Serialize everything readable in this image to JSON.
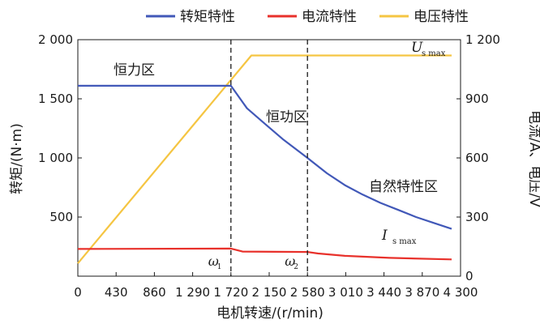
{
  "chart_data": {
    "type": "line",
    "xlabel": "电机转速/(r/min)",
    "ylabel_left": "转矩/(N·m)",
    "ylabel_right": "电流/A、电压/V",
    "xlim": [
      0,
      4300
    ],
    "ylim_left": [
      0,
      2000
    ],
    "ylim_right": [
      0,
      1200
    ],
    "x_ticks": [
      0,
      430,
      860,
      1290,
      1720,
      2150,
      2580,
      3010,
      3440,
      3870,
      4300
    ],
    "x_tick_labels": [
      "0",
      "430",
      "860",
      "1 290",
      "1 720",
      "2 150",
      "2 580",
      "3 010",
      "3 440",
      "3 870",
      "4 300"
    ],
    "y_left_ticks": [
      500,
      1000,
      1500,
      2000
    ],
    "y_left_tick_labels": [
      "500",
      "1 000",
      "1 500",
      "2 000"
    ],
    "y_right_ticks": [
      0,
      300,
      600,
      900,
      1200
    ],
    "y_right_tick_labels": [
      "0",
      "300",
      "600",
      "900",
      "1 200"
    ],
    "legend_position": "top",
    "grid": false,
    "series": [
      {
        "name": "转矩特性",
        "axis": "left",
        "color": "#4158b8",
        "x": [
          0,
          1720,
          1900,
          2100,
          2300,
          2580,
          2800,
          3000,
          3200,
          3400,
          3600,
          3800,
          4000,
          4200
        ],
        "values": [
          1610,
          1610,
          1420,
          1290,
          1160,
          1000,
          870,
          770,
          690,
          620,
          560,
          500,
          450,
          400
        ]
      },
      {
        "name": "电流特性",
        "axis": "right",
        "color": "#e8312b",
        "x": [
          0,
          1720,
          1850,
          2580,
          2700,
          3000,
          3500,
          4200
        ],
        "values": [
          138,
          140,
          125,
          123,
          115,
          103,
          93,
          85
        ]
      },
      {
        "name": "电压特性",
        "axis": "right",
        "color": "#f5c542",
        "x": [
          0,
          1950,
          4200
        ],
        "values": [
          65,
          1120,
          1120
        ]
      }
    ],
    "vlines": [
      {
        "x": 1720,
        "label": "ω",
        "sub": "1"
      },
      {
        "x": 2580,
        "label": "ω",
        "sub": "2"
      }
    ],
    "annotations": [
      {
        "text": "恒力区"
      },
      {
        "text": "恒功区"
      },
      {
        "text": "自然特性区"
      }
    ],
    "limit_labels": [
      {
        "main": "U",
        "sub": "s max"
      },
      {
        "main": "I",
        "sub": "s max"
      }
    ]
  }
}
